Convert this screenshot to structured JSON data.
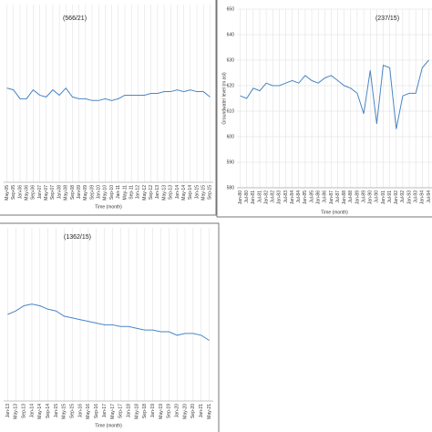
{
  "chart_data": [
    {
      "type": "line",
      "title": "(566/21)",
      "x_label": "Time (month)",
      "categories": [
        "May-05",
        "Sep-05",
        "Jan-06",
        "May-06",
        "Sep-06",
        "Jan-07",
        "May-07",
        "Sep-07",
        "Jan-08",
        "May-08",
        "Sep-08",
        "Jan-09",
        "May-09",
        "Sep-09",
        "Jan-10",
        "May-10",
        "Sep-10",
        "Jan-11",
        "May-11",
        "Sep-11",
        "Jan-12",
        "May-12",
        "Sep-12",
        "Jan-13",
        "May-13",
        "Sep-13",
        "Jan-14",
        "May-14",
        "Sep-14",
        "Jan-15",
        "May-15",
        "Sep-15"
      ],
      "series": [
        {
          "name": "566/21",
          "color": "#4a86c5",
          "values": [
            53,
            52,
            47,
            47,
            52,
            49,
            48,
            52,
            49,
            53,
            48,
            47,
            47,
            46,
            46,
            47,
            46,
            47,
            49,
            49,
            49,
            49,
            50,
            50,
            51,
            51,
            52,
            51,
            52,
            51,
            51,
            48
          ]
        }
      ],
      "ylim": [
        0,
        100
      ],
      "grid": true
    },
    {
      "type": "line",
      "title": "(237/15)",
      "x_label": "Time (month)",
      "y_label": "Groundwater level (m asl)",
      "categories": [
        "Jan-80",
        "Jul-80",
        "Jan-81",
        "Jul-81",
        "Jan-82",
        "Jul-82",
        "Jan-83",
        "Jul-83",
        "Jan-84",
        "Jul-84",
        "Jan-85",
        "Jul-85",
        "Jan-86",
        "Jul-86",
        "Jan-87",
        "Jul-87",
        "Jan-88",
        "Jul-88",
        "Jan-89",
        "Jul-89",
        "Jan-90",
        "Jul-90",
        "Jan-91",
        "Jul-91",
        "Jan-92",
        "Jul-92",
        "Jan-93",
        "Jul-93",
        "Jan-94",
        "Jul-94"
      ],
      "series": [
        {
          "name": "237/15",
          "color": "#4a86c5",
          "values": [
            616,
            615,
            619,
            618,
            621,
            620,
            620,
            621,
            622,
            621,
            624,
            622,
            621,
            623,
            624,
            622,
            620,
            619,
            617,
            609,
            626,
            605,
            628,
            627,
            603,
            616,
            617,
            617,
            627,
            630
          ]
        }
      ],
      "ylim": [
        580,
        650
      ],
      "yticks": [
        580,
        590,
        600,
        610,
        620,
        630,
        640,
        650
      ],
      "grid": true
    },
    {
      "type": "line",
      "title": "(1362/15)",
      "x_label": "Time (month)",
      "categories": [
        "Jan-13",
        "May-13",
        "Sep-13",
        "Jan-14",
        "May-14",
        "Sep-14",
        "Jan-15",
        "May-15",
        "Sep-15",
        "Jan-16",
        "May-16",
        "Sep-16",
        "Jan-17",
        "May-17",
        "Sep-17",
        "Jan-18",
        "May-18",
        "Sep-18",
        "Jan-19",
        "May-19",
        "Sep-19",
        "Jan-20",
        "May-20",
        "Sep-20",
        "Jan-21",
        "May-21"
      ],
      "series": [
        {
          "name": "1362/15",
          "color": "#4a86c5",
          "values": [
            50,
            52,
            55,
            56,
            55,
            53,
            52,
            49,
            48,
            47,
            46,
            45,
            44,
            44,
            43,
            43,
            42,
            41,
            41,
            40,
            40,
            38,
            39,
            39,
            38,
            35
          ]
        }
      ],
      "ylim": [
        0,
        100
      ],
      "grid": true
    }
  ]
}
